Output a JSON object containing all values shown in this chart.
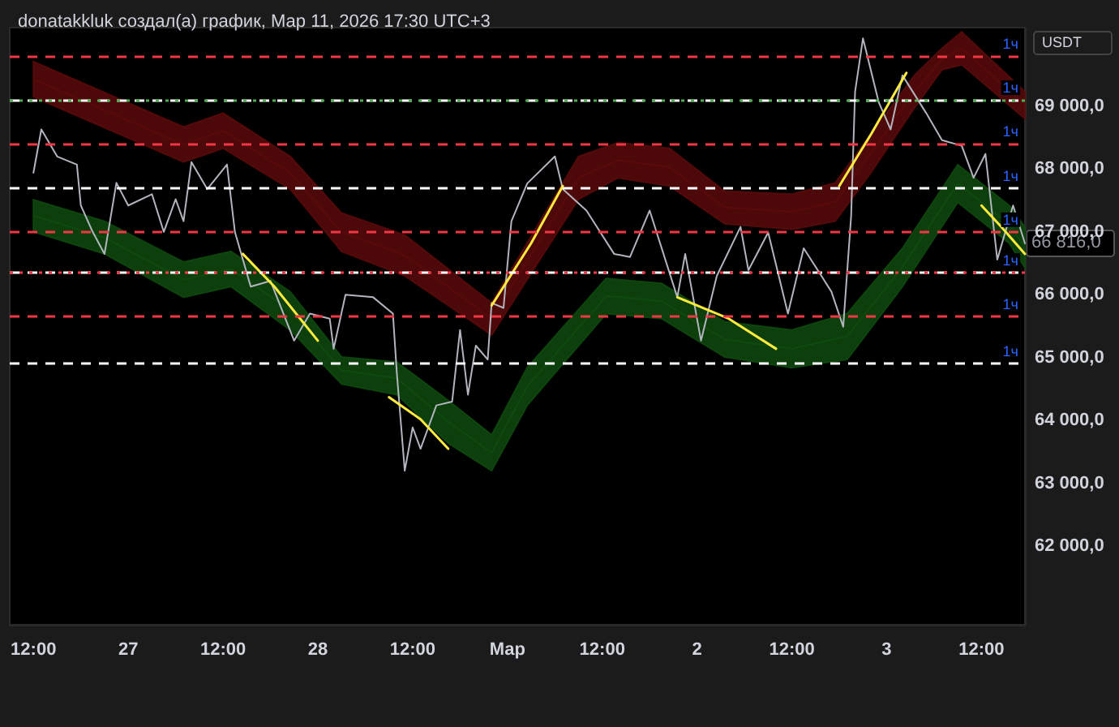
{
  "chart_data": {
    "type": "line",
    "title": "donatakkluk создал(а) график, Мар 11, 2026 17:30 UTC+3",
    "xlim": [
      "2026-02-26T09:00",
      "2026-03-03T17:30"
    ],
    "xticks": [
      {
        "value": "2026-02-26T12:00",
        "label": "12:00"
      },
      {
        "value": "2026-02-27T00:00",
        "label": "27"
      },
      {
        "value": "2026-02-27T12:00",
        "label": "12:00"
      },
      {
        "value": "2026-02-28T00:00",
        "label": "28"
      },
      {
        "value": "2026-02-28T12:00",
        "label": "12:00"
      },
      {
        "value": "2026-03-01T00:00",
        "label": "Мар"
      },
      {
        "value": "2026-03-01T12:00",
        "label": "12:00"
      },
      {
        "value": "2026-03-02T00:00",
        "label": "2"
      },
      {
        "value": "2026-03-02T12:00",
        "label": "12:00"
      },
      {
        "value": "2026-03-03T00:00",
        "label": "3"
      },
      {
        "value": "2026-03-03T12:00",
        "label": "12:00"
      }
    ],
    "ylim": [
      60750,
      70250
    ],
    "yticks": [
      {
        "value": 62000,
        "label": "62 000,0"
      },
      {
        "value": 63000,
        "label": "63 000,0"
      },
      {
        "value": 64000,
        "label": "64 000,0"
      },
      {
        "value": 65000,
        "label": "65 000,0"
      },
      {
        "value": 66000,
        "label": "66 000,0"
      },
      {
        "value": 67000,
        "label": "67 000,0"
      },
      {
        "value": 68000,
        "label": "68 000,0"
      },
      {
        "value": 69000,
        "label": "69 000,0"
      }
    ],
    "grid": false,
    "marker": "none",
    "line_style": "solid",
    "series": [
      {
        "color": "#5a0a0a",
        "x": [
          "2026-02-26T12:00",
          "2026-02-27T07:00",
          "2026-02-27T12:00",
          "2026-02-27T20:30",
          "2026-02-28T03:00",
          "2026-02-28T11:00",
          "2026-02-28T22:00",
          "2026-03-01T09:00",
          "2026-03-01T14:00",
          "2026-03-01T20:30",
          "2026-03-02T03:30",
          "2026-03-02T12:00",
          "2026-03-02T17:30",
          "2026-03-02T22:00",
          "2026-03-03T03:30",
          "2026-03-03T07:00",
          "2026-03-03T09:30",
          "2026-03-03T17:30"
        ],
        "values": [
          69430,
          68390,
          68610,
          67940,
          67000,
          66630,
          65620,
          67860,
          68140,
          68030,
          67390,
          67320,
          67480,
          68250,
          69230,
          69750,
          69920,
          69020
        ],
        "upper": [
          69710,
          68670,
          68890,
          68200,
          67300,
          66950,
          65870,
          68200,
          68420,
          68330,
          67650,
          67600,
          67780,
          68550,
          69490,
          69920,
          70180,
          69230
        ],
        "lower": [
          69150,
          68110,
          68330,
          67680,
          66690,
          66300,
          65360,
          67520,
          67860,
          67730,
          67130,
          67040,
          67170,
          67940,
          68970,
          69580,
          69660,
          68800
        ]
      },
      {
        "color": "#0f4a0f",
        "x": [
          "2026-02-26T12:00",
          "2026-02-26T21:00",
          "2026-02-27T07:00",
          "2026-02-27T13:00",
          "2026-02-27T20:30",
          "2026-02-28T03:00",
          "2026-02-28T10:00",
          "2026-02-28T16:30",
          "2026-02-28T22:00",
          "2026-03-01T02:30",
          "2026-03-01T12:30",
          "2026-03-01T19:30",
          "2026-03-02T03:30",
          "2026-03-02T12:00",
          "2026-03-02T19:00",
          "2026-03-03T02:00",
          "2026-03-03T09:00",
          "2026-03-03T15:30",
          "2026-03-03T17:30"
        ],
        "values": [
          67260,
          66910,
          66240,
          66410,
          65750,
          64800,
          64670,
          63980,
          63490,
          64540,
          65980,
          65900,
          65290,
          65140,
          65340,
          66440,
          67770,
          67120,
          66760
        ],
        "upper": [
          67510,
          67170,
          66520,
          66690,
          66050,
          65010,
          64930,
          64320,
          63770,
          64840,
          66260,
          66180,
          65570,
          65440,
          65700,
          66740,
          68070,
          67420,
          67080
        ],
        "lower": [
          67000,
          66650,
          65960,
          66130,
          65440,
          64580,
          64410,
          63640,
          63200,
          64240,
          65700,
          65620,
          65010,
          64840,
          64970,
          66130,
          67470,
          66820,
          66430
        ]
      },
      {
        "color": "#b2b5be",
        "x": [
          "2026-02-26T12:00",
          "2026-02-26T13:00",
          "2026-02-26T15:00",
          "2026-02-26T17:30",
          "2026-02-26T18:00",
          "2026-02-26T19:30",
          "2026-02-26T21:00",
          "2026-02-26T22:30",
          "2026-02-27T00:00",
          "2026-02-27T03:00",
          "2026-02-27T04:30",
          "2026-02-27T06:00",
          "2026-02-27T07:00",
          "2026-02-27T08:00",
          "2026-02-27T10:00",
          "2026-02-27T12:30",
          "2026-02-27T13:30",
          "2026-02-27T15:30",
          "2026-02-27T18:00",
          "2026-02-27T21:00",
          "2026-02-27T23:00",
          "2026-02-28T01:30",
          "2026-02-28T02:00",
          "2026-02-28T03:30",
          "2026-02-28T07:00",
          "2026-02-28T09:30",
          "2026-02-28T10:00",
          "2026-02-28T11:00",
          "2026-02-28T12:00",
          "2026-02-28T13:00",
          "2026-02-28T15:00",
          "2026-02-28T17:00",
          "2026-02-28T18:00",
          "2026-02-28T19:00",
          "2026-02-28T20:00",
          "2026-02-28T21:30",
          "2026-02-28T22:00",
          "2026-02-28T23:30",
          "2026-03-01T00:30",
          "2026-03-01T02:30",
          "2026-03-01T06:00",
          "2026-03-01T07:00",
          "2026-03-01T10:00",
          "2026-03-01T13:30",
          "2026-03-01T15:30",
          "2026-03-01T18:00",
          "2026-03-01T21:30",
          "2026-03-01T22:30",
          "2026-03-02T00:30",
          "2026-03-02T02:30",
          "2026-03-02T05:30",
          "2026-03-02T06:30",
          "2026-03-02T09:00",
          "2026-03-02T11:30",
          "2026-03-02T13:30",
          "2026-03-02T17:00",
          "2026-03-02T18:30",
          "2026-03-02T19:30",
          "2026-03-02T20:00",
          "2026-03-02T21:00",
          "2026-03-02T23:00",
          "2026-03-03T00:30",
          "2026-03-03T02:00",
          "2026-03-03T05:00",
          "2026-03-03T07:00",
          "2026-03-03T09:30",
          "2026-03-03T11:00",
          "2026-03-03T12:30",
          "2026-03-03T14:00",
          "2026-03-03T16:00",
          "2026-03-03T17:30"
        ],
        "values": [
          67940,
          68630,
          68200,
          68070,
          67420,
          67000,
          66650,
          67780,
          67420,
          67600,
          67000,
          67520,
          67170,
          68110,
          67680,
          68070,
          67000,
          66130,
          66220,
          65270,
          65700,
          65620,
          65140,
          66000,
          65960,
          65700,
          64750,
          63200,
          63890,
          63550,
          64240,
          64300,
          65440,
          64410,
          65190,
          64970,
          65870,
          65790,
          67170,
          67770,
          68200,
          67680,
          67340,
          66650,
          66600,
          67340,
          65960,
          66650,
          65270,
          66300,
          67080,
          66390,
          66990,
          65700,
          66740,
          66050,
          65490,
          67250,
          69230,
          70080,
          69060,
          68630,
          69490,
          68890,
          68460,
          68370,
          67860,
          68240,
          66560,
          67420,
          66816
        ]
      },
      {
        "type": "line",
        "color": "#ffeb3b",
        "x": [
          "2026-02-27T14:30",
          "2026-02-27T18:30",
          "2026-02-28T00:00"
        ],
        "values": [
          66650,
          66130,
          65270
        ]
      },
      {
        "type": "line",
        "color": "#ffeb3b",
        "x": [
          "2026-02-28T09:00",
          "2026-02-28T13:00",
          "2026-02-28T16:30"
        ],
        "values": [
          64370,
          64020,
          63550
        ]
      },
      {
        "type": "line",
        "color": "#ffeb3b",
        "x": [
          "2026-02-28T22:00",
          "2026-03-01T03:00",
          "2026-03-01T07:00"
        ],
        "values": [
          65830,
          66820,
          67730
        ]
      },
      {
        "type": "line",
        "color": "#ffeb3b",
        "x": [
          "2026-03-01T21:30",
          "2026-03-02T04:00",
          "2026-03-02T10:00"
        ],
        "values": [
          65960,
          65620,
          65140
        ]
      },
      {
        "type": "line",
        "color": "#ffeb3b",
        "x": [
          "2026-03-02T18:00",
          "2026-03-02T22:00",
          "2026-03-03T02:30"
        ],
        "values": [
          67730,
          68550,
          69530
        ]
      },
      {
        "type": "line",
        "color": "#ffeb3b",
        "x": [
          "2026-03-03T12:00",
          "2026-03-03T14:30",
          "2026-03-03T17:30"
        ],
        "values": [
          67420,
          67080,
          66650
        ]
      }
    ],
    "ref_lines": [
      {
        "axis": "y",
        "value": 69800,
        "label": "1ч",
        "color": "#f23645",
        "line_style": "dashed"
      },
      {
        "axis": "y",
        "value": 69100,
        "label": "1ч",
        "color": "#ffffff",
        "line_style": "dashed"
      },
      {
        "axis": "y",
        "value": 69100,
        "label": null,
        "color": "#4caf50",
        "line_style": "dotted"
      },
      {
        "axis": "y",
        "value": 68400,
        "label": "1ч",
        "color": "#f23645",
        "line_style": "dashed"
      },
      {
        "axis": "y",
        "value": 67700,
        "label": "1ч",
        "color": "#ffffff",
        "line_style": "dashed"
      },
      {
        "axis": "y",
        "value": 67000,
        "label": "1ч",
        "color": "#f23645",
        "line_style": "dashed"
      },
      {
        "axis": "y",
        "value": 66350,
        "label": "1ч",
        "color": "#ffffff",
        "line_style": "dashed"
      },
      {
        "axis": "y",
        "value": 66350,
        "label": null,
        "color": "#f23645",
        "line_style": "dotted"
      },
      {
        "axis": "y",
        "value": 65650,
        "label": "1ч",
        "color": "#f23645",
        "line_style": "dashed"
      },
      {
        "axis": "y",
        "value": 64900,
        "label": "1ч",
        "color": "#ffffff",
        "line_style": "dashed"
      }
    ],
    "annotations": [
      "USDT",
      {
        "text": "66 816,0",
        "x": "2026-03-03T17:30",
        "y": 66816
      }
    ]
  }
}
